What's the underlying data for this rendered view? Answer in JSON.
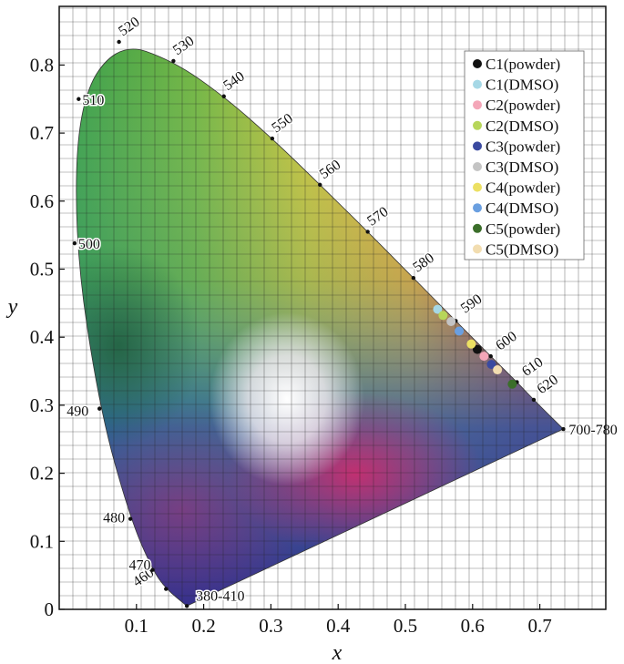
{
  "chart_data": {
    "type": "scatter",
    "title": "",
    "xlabel": "x",
    "ylabel": "y",
    "xlim": [
      0,
      0.8
    ],
    "ylim": [
      0,
      0.9
    ],
    "xticks": [
      0.1,
      0.2,
      0.3,
      0.4,
      0.5,
      0.6,
      0.7
    ],
    "yticks": [
      0,
      0.1,
      0.2,
      0.3,
      0.4,
      0.5,
      0.6,
      0.7,
      0.8
    ],
    "xtick_labels": [
      "0.1",
      "0.2",
      "0.3",
      "0.4",
      "0.5",
      "0.6",
      "0.7"
    ],
    "ytick_labels": [
      "0",
      "0.1",
      "0.2",
      "0.3",
      "0.4",
      "0.5",
      "0.6",
      "0.7",
      "0.8"
    ],
    "grid": true,
    "legend_position": "top-right",
    "spectral_locus": [
      {
        "label": "380-410",
        "x": 0.175,
        "y": 0.005
      },
      {
        "label": "460",
        "x": 0.144,
        "y": 0.03
      },
      {
        "label": "470",
        "x": 0.124,
        "y": 0.058
      },
      {
        "label": "480",
        "x": 0.091,
        "y": 0.133
      },
      {
        "label": "490",
        "x": 0.045,
        "y": 0.295
      },
      {
        "label": "500",
        "x": 0.008,
        "y": 0.538
      },
      {
        "label": "510",
        "x": 0.014,
        "y": 0.75
      },
      {
        "label": "520",
        "x": 0.074,
        "y": 0.834
      },
      {
        "label": "530",
        "x": 0.155,
        "y": 0.806
      },
      {
        "label": "540",
        "x": 0.23,
        "y": 0.754
      },
      {
        "label": "550",
        "x": 0.302,
        "y": 0.692
      },
      {
        "label": "560",
        "x": 0.373,
        "y": 0.624
      },
      {
        "label": "570",
        "x": 0.444,
        "y": 0.555
      },
      {
        "label": "580",
        "x": 0.512,
        "y": 0.487
      },
      {
        "label": "590",
        "x": 0.575,
        "y": 0.424
      },
      {
        "label": "600",
        "x": 0.627,
        "y": 0.372
      },
      {
        "label": "610",
        "x": 0.666,
        "y": 0.334
      },
      {
        "label": "620",
        "x": 0.691,
        "y": 0.308
      },
      {
        "label": "700-780",
        "x": 0.735,
        "y": 0.265
      }
    ],
    "series": [
      {
        "name": "C1(powder)",
        "color": "#111111",
        "x": 0.607,
        "y": 0.382
      },
      {
        "name": "C1(DMSO)",
        "color": "#a6d8e6",
        "x": 0.548,
        "y": 0.441
      },
      {
        "name": "C2(powder)",
        "color": "#f4a6b8",
        "x": 0.617,
        "y": 0.372
      },
      {
        "name": "C2(DMSO)",
        "color": "#b7d65a",
        "x": 0.556,
        "y": 0.432
      },
      {
        "name": "C3(powder)",
        "color": "#3a4aa0",
        "x": 0.628,
        "y": 0.36
      },
      {
        "name": "C3(DMSO)",
        "color": "#c4c4c4",
        "x": 0.568,
        "y": 0.423
      },
      {
        "name": "C4(powder)",
        "color": "#ece063",
        "x": 0.598,
        "y": 0.39
      },
      {
        "name": "C4(DMSO)",
        "color": "#6a9fe0",
        "x": 0.58,
        "y": 0.409
      },
      {
        "name": "C5(powder)",
        "color": "#3b6e2a",
        "x": 0.659,
        "y": 0.331
      },
      {
        "name": "C5(DMSO)",
        "color": "#f2ddb0",
        "x": 0.637,
        "y": 0.352
      }
    ]
  }
}
